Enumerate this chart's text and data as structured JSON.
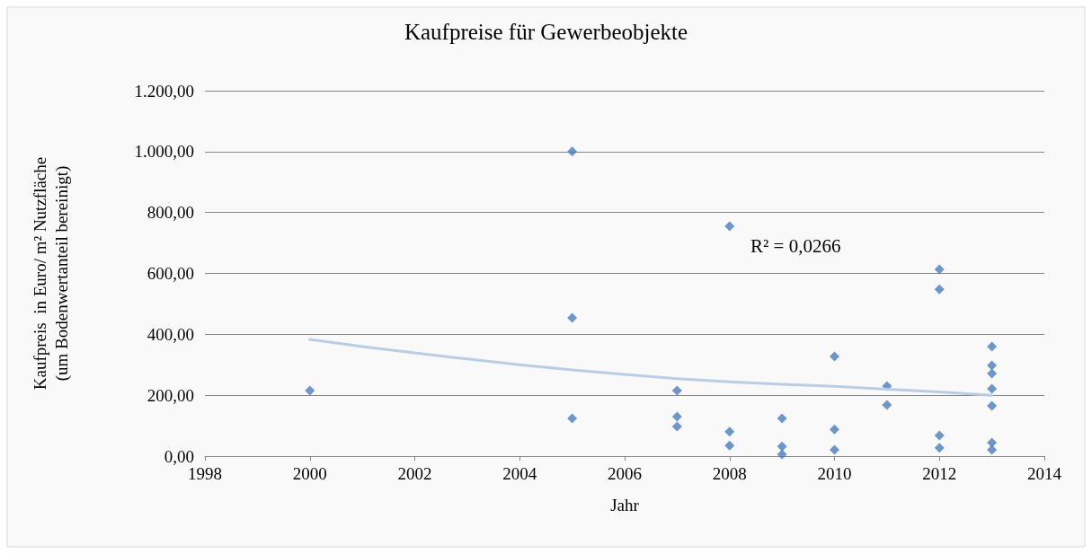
{
  "chart_data": {
    "type": "scatter",
    "title": "Kaufpreise für Gewerbeobjekte",
    "xlabel": "Jahr",
    "ylabel": "Kaufpreis  in Euro/ m² Nutzfläche\n(um Bodenwertanteil bereinigt)",
    "series": [
      {
        "color": "#4a7ebb",
        "marker": "diamond",
        "x": [
          2000,
          2005,
          2005,
          2005,
          2007,
          2007,
          2007,
          2008,
          2008,
          2008,
          2009,
          2009,
          2009,
          2010,
          2010,
          2010,
          2011,
          2011,
          2012,
          2012,
          2012,
          2012,
          2013,
          2013,
          2013,
          2013,
          2013,
          2013,
          2013
        ],
        "values": [
          215,
          1000,
          454,
          124,
          215,
          130,
          97,
          755,
          80,
          35,
          124,
          32,
          6,
          327,
          88,
          21,
          230,
          168,
          613,
          548,
          68,
          27,
          360,
          298,
          271,
          221,
          165,
          44,
          21
        ]
      },
      {
        "type": "line",
        "color": "#b9cde5",
        "marker": "none",
        "x": [
          2000,
          2001,
          2002,
          2003,
          2004,
          2005,
          2006,
          2007,
          2008,
          2009,
          2010,
          2011,
          2012,
          2013
        ],
        "values": [
          383,
          360,
          339,
          319,
          300,
          283,
          268,
          254,
          244,
          236,
          229,
          220,
          211,
          200
        ]
      }
    ],
    "xlim": [
      1998,
      2014
    ],
    "xticks": [
      1998,
      2000,
      2002,
      2004,
      2006,
      2008,
      2010,
      2012,
      2014
    ],
    "ylim": [
      0,
      1200
    ],
    "yticks": [
      {
        "value": 0,
        "label": "0,00"
      },
      {
        "value": 200,
        "label": "200,00"
      },
      {
        "value": 400,
        "label": "400,00"
      },
      {
        "value": 600,
        "label": "600,00"
      },
      {
        "value": 800,
        "label": "800,00"
      },
      {
        "value": 1000,
        "label": "1.000,00"
      },
      {
        "value": 1200,
        "label": "1.200,00"
      }
    ],
    "grid": "y",
    "annotations": [
      "R² = 0,0266"
    ]
  }
}
